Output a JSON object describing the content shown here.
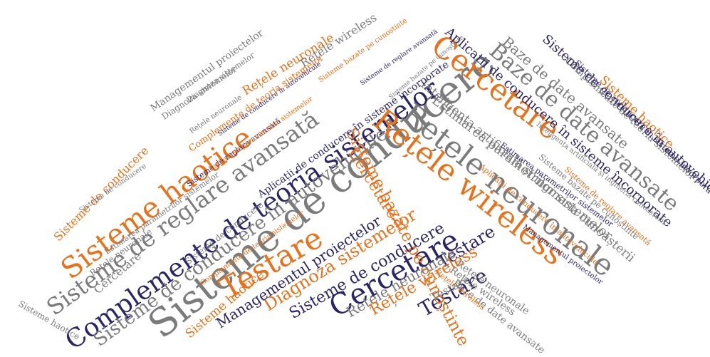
{
  "colors": {
    "orange": "#e8711c",
    "navy": "#2b2465",
    "gray": "#7b7b7b"
  },
  "words": [
    "Sisteme de conducere",
    "Rețele neuronale",
    "Cercetare",
    "Rețele wireless",
    "Complemente de teoria sistemelor",
    "Sisteme haotice",
    "Sisteme de reglare avansată",
    "Baze de date avansate",
    "Testare",
    "Sisteme de conducere în autovehicule",
    "Cercetare",
    "Sisteme bazate pe cunoștinte",
    "Aplicații de conducere în sisteme încorporate",
    "Estimarea parametrilor sistemelor",
    "Inteligența artificială și ingineria cunoașterii",
    "Managementul proiectelor",
    "Diagnoza sistemelor",
    "Testare",
    "Testare",
    "Cercetare",
    "Baze de date avansate",
    "Sisteme de conducere",
    "Rețele neuronale",
    "Rețele wireless",
    "Sisteme haotice",
    "Sisteme de conducere",
    "Sisteme haotice",
    "Sisteme haotice",
    "Rețele wireless",
    "Rețele neuronale",
    "Diagnoza sistemelor",
    "Managementul proiectelor",
    "Diagnoza sistemelor",
    "Complemente de teoria sistemelor",
    "Rețele neuronale",
    "Sisteme de conducere",
    "Cercetare",
    "Rețele neuronale",
    "Sisteme de conducere",
    "Estimarea parametrilor sistemelor",
    "Complemente de teoria sistemelor",
    "Aplicații de conducere în autovehicule",
    "Sisteme bazate pe cunoștinte",
    "Rețele wireless",
    "Testare",
    "Baze de date avansate",
    "Sisteme de reglare avansată",
    "Estimarea parametrilor sistemelor",
    "Sisteme de conducere în autovehicule",
    "Managementul proiectelor",
    "Rețele neuronale",
    "Aplicații de conducere în sisteme încorporate",
    "Complemente de teoria sistemelor",
    "Sisteme de conducere în sisteme încorporate",
    "Sisteme bazate pe cunoștinte",
    "Inteligența artificială și ingineria cunoașterii",
    "Sisteme de conducere în autovehicule",
    "Estimarea parametrilor sistemelor",
    "Sisteme de reglare avansată",
    "Sisteme bazate pe cunoștinte",
    "Rețele wireless",
    "Sisteme de reglare avansată"
  ]
}
